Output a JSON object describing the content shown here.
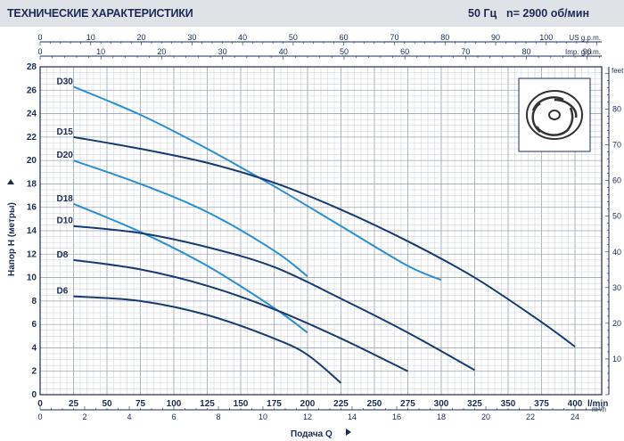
{
  "header": {
    "title": "ТЕХНИЧЕСКИЕ ХАРАКТЕРИСТИКИ",
    "frequency": "50 Гц",
    "speed": "n= 2900 об/мин"
  },
  "chart_data": {
    "type": "line",
    "xlabel": "Подача Q",
    "ylabel": "Напор H (метры)",
    "x_unit": "l/min",
    "xlim": [
      0,
      420
    ],
    "ylim": [
      0,
      28
    ],
    "x_ticks": [
      0,
      25,
      50,
      75,
      100,
      125,
      150,
      175,
      200,
      225,
      250,
      275,
      300,
      325,
      350,
      375,
      400
    ],
    "y_ticks": [
      0,
      2,
      4,
      6,
      8,
      10,
      12,
      14,
      16,
      18,
      20,
      22,
      24,
      26,
      28
    ],
    "right_axis": {
      "unit": "feet",
      "ticks": [
        10,
        20,
        30,
        40,
        50,
        60,
        70,
        80
      ]
    },
    "top_axes": [
      {
        "unit": "US g.p.m.",
        "ticks": [
          0,
          10,
          20,
          30,
          40,
          50,
          60,
          70,
          80,
          90,
          100
        ]
      },
      {
        "unit": "Imp. g.p.m.",
        "ticks": [
          0,
          10,
          20,
          30,
          40,
          50,
          60,
          70,
          80,
          90
        ]
      }
    ],
    "bottom_axis_m3h": {
      "unit": "m³/h",
      "ticks": [
        0,
        2,
        4,
        6,
        8,
        10,
        12,
        14,
        16,
        18,
        20,
        22,
        24
      ]
    },
    "grid": true,
    "series": [
      {
        "name": "D30",
        "color": "#2a8fd4",
        "x": [
          25,
          75,
          125,
          175,
          225,
          275,
          300
        ],
        "y": [
          26.3,
          23.9,
          21.0,
          17.8,
          14.4,
          11.0,
          9.8
        ]
      },
      {
        "name": "D15",
        "color": "#163a72",
        "x": [
          25,
          75,
          125,
          175,
          225,
          275,
          325,
          375,
          400
        ],
        "y": [
          22.0,
          21.0,
          19.8,
          18.1,
          15.8,
          13.1,
          10.0,
          6.2,
          4.1
        ]
      },
      {
        "name": "D20",
        "color": "#2a8fd4",
        "x": [
          25,
          75,
          125,
          175,
          200
        ],
        "y": [
          20.0,
          18.0,
          15.6,
          12.3,
          10.1
        ]
      },
      {
        "name": "D18",
        "color": "#2a8fd4",
        "x": [
          25,
          75,
          125,
          175,
          200
        ],
        "y": [
          16.3,
          13.9,
          11.0,
          7.4,
          5.3
        ]
      },
      {
        "name": "D10",
        "color": "#163a72",
        "x": [
          25,
          75,
          125,
          175,
          225,
          275,
          325
        ],
        "y": [
          14.4,
          13.8,
          12.6,
          10.9,
          8.2,
          5.3,
          2.1
        ]
      },
      {
        "name": "D8",
        "color": "#163a72",
        "x": [
          25,
          75,
          125,
          175,
          225,
          275
        ],
        "y": [
          11.5,
          10.7,
          9.3,
          7.3,
          4.8,
          2.0
        ]
      },
      {
        "name": "D6",
        "color": "#163a72",
        "x": [
          25,
          75,
          125,
          175,
          200,
          225
        ],
        "y": [
          8.4,
          8.0,
          6.8,
          4.8,
          3.4,
          1.0
        ]
      }
    ]
  }
}
